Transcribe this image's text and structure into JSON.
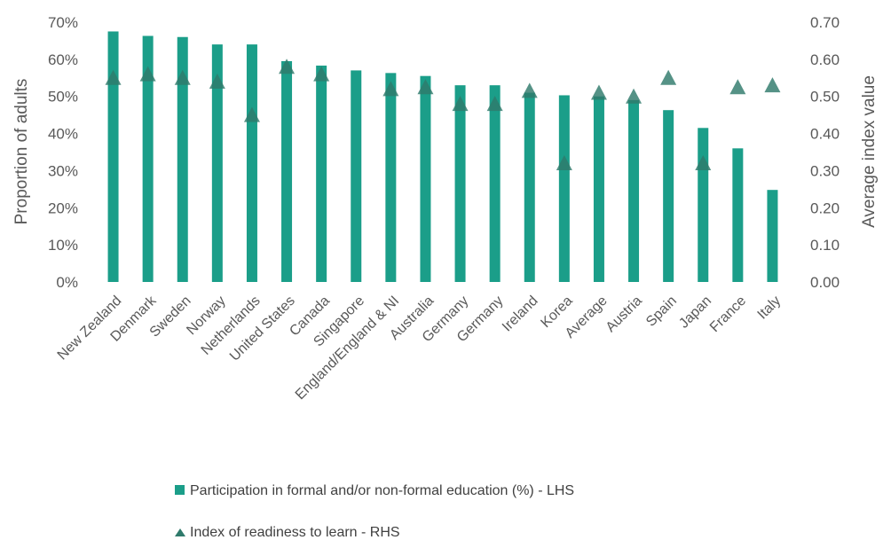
{
  "colors": {
    "bar": "#1b9e89",
    "marker": "#2f7a6b",
    "text": "#595959"
  },
  "chart_data": {
    "type": "bar",
    "categories": [
      "New Zealand",
      "Denmark",
      "Sweden",
      "Norway",
      "Netherlands",
      "United States",
      "Canada",
      "Singapore",
      "England/England & NI",
      "Australia",
      "Germany",
      "Germany",
      "Ireland",
      "Korea",
      "Average",
      "Austria",
      "Spain",
      "Japan",
      "France",
      "Italy"
    ],
    "series": [
      {
        "name": "Participation in formal and/or non-formal education (%) - LHS",
        "type": "bar",
        "axis": "left",
        "values": [
          67.5,
          66.3,
          66.0,
          64.0,
          64.0,
          59.5,
          58.3,
          57.0,
          56.3,
          55.5,
          53.0,
          53.0,
          51.0,
          50.3,
          50.0,
          49.0,
          46.3,
          41.5,
          36.0,
          24.8
        ]
      },
      {
        "name": "Index of readiness to learn - RHS",
        "type": "marker",
        "axis": "right",
        "values": [
          0.55,
          0.56,
          0.55,
          0.54,
          0.45,
          0.58,
          0.56,
          null,
          0.52,
          0.525,
          0.48,
          0.48,
          0.515,
          0.32,
          0.51,
          0.5,
          0.55,
          0.32,
          0.525,
          0.53
        ]
      }
    ],
    "ylabel": "Proportion of adults",
    "y2label": "Average index value",
    "ylim": [
      0,
      70
    ],
    "y2lim": [
      0,
      0.7
    ],
    "yticks": [
      "0%",
      "10%",
      "20%",
      "30%",
      "40%",
      "50%",
      "60%",
      "70%"
    ],
    "y2ticks": [
      "0.00",
      "0.10",
      "0.20",
      "0.30",
      "0.40",
      "0.50",
      "0.60",
      "0.70"
    ],
    "grid": false,
    "legend": "bottom"
  }
}
